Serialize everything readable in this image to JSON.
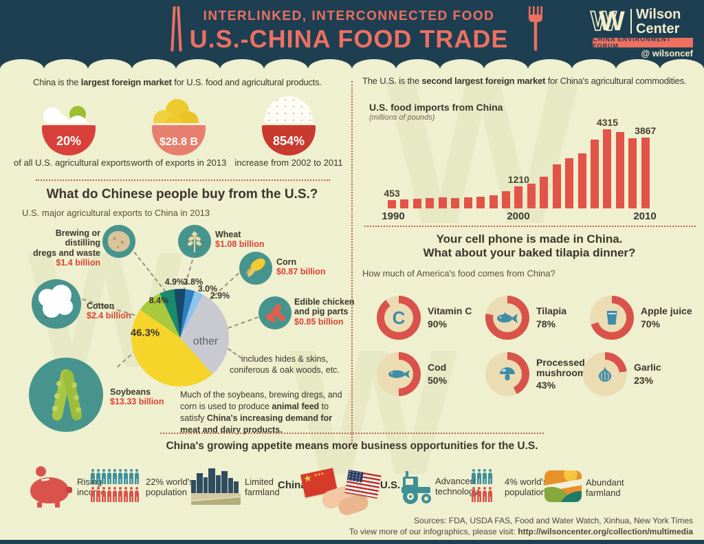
{
  "colors": {
    "bg": "#eff0cf",
    "navy": "#1e3f51",
    "coral": "#ed7061",
    "cream": "#f1ecca",
    "ink": "#3a362c",
    "dot": "#c05a4b",
    "money_red": "#da4335",
    "teal_circle": "#47948e",
    "icon_teal": "#3f8da6",
    "tan": "#ecdcb4"
  },
  "header": {
    "kicker": "INTERLINKED, INTERCONNECTED FOOD",
    "title": "U.S.-CHINA FOOD TRADE",
    "logo_glyph": "W",
    "logo_name1": "Wilson",
    "logo_name2": "Center",
    "logo_badge": "CHINA ENVIRONMENT FORUM",
    "logo_handle": "@ wilsoncef"
  },
  "left_top": {
    "intro": {
      "pre": "China is the ",
      "bold": "largest foreign market",
      "post": " for U.S. food and agricultural products."
    },
    "stats": [
      {
        "icon": "dumpling-bowl",
        "value": "20%",
        "caption": "of all U.S. agricultural exports"
      },
      {
        "icon": "noodle-bowl",
        "value": "$28.8 B",
        "caption": "worth of exports in 2013"
      },
      {
        "icon": "rice-bowl",
        "value": "854%",
        "caption": "increase from 2002 to 2011"
      }
    ]
  },
  "right_top": {
    "intro": {
      "pre": "The U.S. is the ",
      "bold": "second largest foreign market",
      "post": " for China's agricultural commodities."
    },
    "chart_title": "U.S. food imports from China",
    "chart_unit": "(millions of pounds)"
  },
  "pie_section": {
    "title": "What do Chinese people buy from the U.S.?",
    "subtitle": "U.S. major agricultural exports to China in 2013",
    "callouts": [
      {
        "name_lines": [
          "Brewing or distilling",
          "dregs and waste"
        ],
        "value": "$1.4 billion",
        "icon": "dregs"
      },
      {
        "name_lines": [
          "Wheat"
        ],
        "value": "$1.08 billion",
        "icon": "wheat"
      },
      {
        "name_lines": [
          "Corn"
        ],
        "value": "$0.87 billion",
        "icon": "corn"
      },
      {
        "name_lines": [
          "Cotton"
        ],
        "value": "$2.4 billion",
        "icon": "cotton"
      },
      {
        "name_lines": [
          "Edible chicken",
          "and pig parts"
        ],
        "value": "$0.85 billion",
        "icon": "meat"
      },
      {
        "name_lines": [
          "Soybeans"
        ],
        "value": "$13.33 billion",
        "icon": "soybean"
      }
    ],
    "other_note": [
      "includes hides & skins,",
      "coniferous & oak woods, etc."
    ],
    "footnote": {
      "pre": "Much of the soybeans, brewing dregs, and corn is used to produce ",
      "bold1": "animal feed",
      "mid": " to satisfy ",
      "bold2": "China's increasing demand for meat and dairy products."
    }
  },
  "donut_section": {
    "title_line1": "Your cell phone is made in China.",
    "title_line2": "What about your baked tilapia dinner?",
    "subtitle": "How much of America's food comes from China?"
  },
  "bottom": {
    "title": "China's growing appetite means more business opportunities for the U.S.",
    "china_label": "China",
    "us_label": "U.S.",
    "items": [
      {
        "icon": "piggy-bank",
        "label_lines": [
          "Rising",
          "income"
        ]
      },
      {
        "icon": "population-grid",
        "label_lines": [
          "22% world's",
          "population"
        ]
      },
      {
        "icon": "city-over-farmland",
        "label_lines": [
          "Limited",
          "farmland"
        ]
      },
      {
        "icon": "tractor",
        "label_lines": [
          "Advanced",
          "technology"
        ]
      },
      {
        "icon": "population-grid",
        "label_lines": [
          "4% world's",
          "population"
        ]
      },
      {
        "icon": "farmland",
        "label_lines": [
          "Abundant",
          "farmland"
        ]
      }
    ],
    "pop22": {
      "per_row": 9,
      "row_colors": [
        "#3e8f9e",
        "#d9534b"
      ]
    },
    "pop4": {
      "per_row": 4,
      "row_colors": [
        "#3e8f9e",
        "#d9534b"
      ]
    }
  },
  "footer": {
    "sources": "Sources: FDA, USDA FAS, Food and Water Watch, Xinhua, New York Times",
    "visit_pre": "To view more of our infographics, please visit: ",
    "visit_url": "http://wilsoncenter.org/collection/multimedia"
  },
  "chart_data": [
    {
      "type": "bar",
      "title": "U.S. food imports from China",
      "unit": "millions of pounds",
      "x": [
        1990,
        1991,
        1992,
        1993,
        1994,
        1995,
        1996,
        1997,
        1998,
        1999,
        2000,
        2001,
        2002,
        2003,
        2004,
        2005,
        2006,
        2007,
        2008,
        2009,
        2010
      ],
      "values": [
        453,
        470,
        510,
        560,
        590,
        550,
        600,
        620,
        700,
        930,
        1210,
        1350,
        1725,
        2400,
        2730,
        3000,
        3750,
        4315,
        4160,
        3830,
        3867
      ],
      "labeled_points": [
        {
          "year": 1990,
          "label": "453"
        },
        {
          "year": 2000,
          "label": "1210"
        },
        {
          "year": 2007,
          "label": "4315"
        },
        {
          "year": 2010,
          "label": "3867"
        }
      ],
      "x_ticks": [
        "1990",
        "2000",
        "2010"
      ],
      "ylim": [
        0,
        4315
      ],
      "bar_color": "#e25348",
      "grid": false
    },
    {
      "type": "pie",
      "title": "U.S. major agricultural exports to China in 2013",
      "start_angle_deg": -55,
      "slices": [
        {
          "name": "Cotton",
          "pct": 8.4,
          "label": "8.4%",
          "color": "#a9c93f",
          "value_usd": "$2.4 billion"
        },
        {
          "name": "Brewing or distilling dregs and waste",
          "pct": 4.9,
          "label": "4.9%",
          "color": "#1a8a6d",
          "value_usd": "$1.4 billion"
        },
        {
          "name": "Wheat",
          "pct": 3.8,
          "label": "3.8%",
          "color": "#17496b",
          "value_usd": "$1.08 billion"
        },
        {
          "name": "Corn",
          "pct": 3.0,
          "label": "3.0%",
          "color": "#2d7fc0",
          "value_usd": "$0.87 billion"
        },
        {
          "name": "Edible chicken and pig parts",
          "pct": 2.9,
          "label": "2.9%",
          "color": "#8cc4ea",
          "value_usd": "$0.85 billion"
        },
        {
          "name": "other",
          "pct": 30.7,
          "label": "other",
          "color": "#c9c9d2",
          "note": "includes hides & skins, coniferous & oak woods, etc."
        },
        {
          "name": "Soybeans",
          "pct": 46.3,
          "label": "46.3%",
          "color": "#f6d52a",
          "value_usd": "$13.33 billion"
        }
      ]
    },
    {
      "type": "donut-set",
      "question": "How much of America's food comes from China?",
      "ring_color": "#d9534a",
      "track_color": "#ecdcb4",
      "items": [
        {
          "label": "Vitamin C",
          "pct": 90,
          "pct_label": "90%",
          "icon": "letter-c",
          "icon_glyph": "C"
        },
        {
          "label": "Tilapia",
          "pct": 78,
          "pct_label": "78%",
          "icon": "fish"
        },
        {
          "label": "Apple juice",
          "pct": 70,
          "pct_label": "70%",
          "icon": "juice-glass"
        },
        {
          "label": "Cod",
          "pct": 50,
          "pct_label": "50%",
          "icon": "fish"
        },
        {
          "label": "Processed mushrooms",
          "pct": 43,
          "pct_label": "43%",
          "icon": "mushroom"
        },
        {
          "label": "Garlic",
          "pct": 23,
          "pct_label": "23%",
          "icon": "garlic"
        }
      ]
    }
  ]
}
